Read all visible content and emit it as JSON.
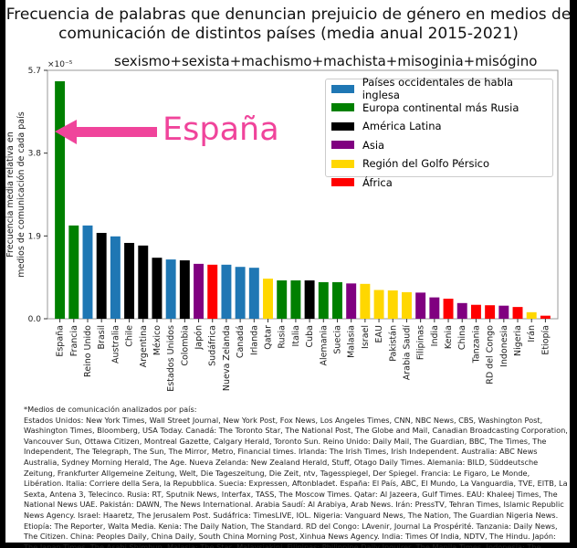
{
  "chart_data": {
    "type": "bar",
    "title": "Frecuencia de palabras que denuncian prejuicio de género en medios de comunicación de distintos países (media anual 2015-2021)",
    "subtitle": "sexismo+sexista+machismo+machista+misoginia+misógino",
    "ylabel": "Frecuencia media relativa en medios de comunicación de cada país",
    "y_multiplier": "×10⁻⁵",
    "ylim": [
      0,
      5.7
    ],
    "yticks": [
      "0.0",
      "1.9",
      "3.8",
      "5.7"
    ],
    "grid": false,
    "legend_position": "top-right",
    "annotation": "España",
    "categories": [
      "España",
      "Francia",
      "Reino Unido",
      "Brasil",
      "Australia",
      "Chile",
      "Argentina",
      "México",
      "Estados Unidos",
      "Colombia",
      "Japón",
      "Sudáfrica",
      "Nueva Zelanda",
      "Canadá",
      "Irlanda",
      "Qatar",
      "Rusia",
      "Italia",
      "Cuba",
      "Alemania",
      "Suecia",
      "Malasia",
      "Israel",
      "EAU",
      "Pakistán",
      "Arabia Saudí",
      "Filipinas",
      "India",
      "Kenia",
      "China",
      "Tanzania",
      "RD del Congo",
      "Indonesia",
      "Nigeria",
      "Irán",
      "Etiopía"
    ],
    "values": [
      5.45,
      2.14,
      2.14,
      1.97,
      1.89,
      1.74,
      1.68,
      1.4,
      1.36,
      1.34,
      1.26,
      1.24,
      1.24,
      1.19,
      1.17,
      0.92,
      0.88,
      0.88,
      0.88,
      0.84,
      0.84,
      0.81,
      0.8,
      0.66,
      0.65,
      0.61,
      0.6,
      0.49,
      0.46,
      0.36,
      0.32,
      0.31,
      0.3,
      0.27,
      0.15,
      0.07
    ],
    "groups": [
      1,
      1,
      0,
      2,
      0,
      2,
      2,
      2,
      0,
      2,
      3,
      5,
      0,
      0,
      0,
      4,
      1,
      1,
      2,
      1,
      1,
      3,
      4,
      4,
      4,
      4,
      3,
      3,
      5,
      3,
      5,
      5,
      3,
      5,
      4,
      5
    ],
    "legend": [
      {
        "name": "Países occidentales de habla inglesa",
        "color": "#1f77b4"
      },
      {
        "name": "Europa continental más Rusia",
        "color": "#008000"
      },
      {
        "name": "América Latina",
        "color": "#000000"
      },
      {
        "name": "Asia",
        "color": "#800080"
      },
      {
        "name": "Región del Golfo Pérsico",
        "color": "#ffd700"
      },
      {
        "name": "África",
        "color": "#ff0000"
      }
    ]
  },
  "footnote": {
    "heading": "*Medios de comunicación analizados por país:",
    "body": "Estados Unidos: New York Times, Wall Street Journal, New York Post, Fox News, Los Angeles Times, CNN, NBC News, CBS, Washington Post, Washington Times, Bloomberg, USA Today. Canadá: The Toronto Star, The National Post, The Globe and Mail, Canadian Broadcasting Corporation, Vancouver Sun, Ottawa Citizen, Montreal Gazette, Calgary Herald, Toronto Sun. Reino Unido: Daily Mail, The Guardian, BBC, The Times, The Independent, The Telegraph, The Sun, The Mirror, Metro, Financial times. Irlanda: The Irish Times, Irish Independent. Australia: ABC News Australia, Sydney Morning Herald, The Age. Nueva Zelanda: New Zealand Herald, Stuff, Otago Daily Times. Alemania: BILD, Süddeutsche Zeitung, Frankfurter Allgemeine Zeitung, Welt, Die Tageszeitung, Die Zeit, ntv, Tagesspiegel, Der Spiegel. Francia: Le Figaro, Le Monde, Libération. Italia: Corriere della Sera, la Repubblica. Suecia: Expressen, Aftonbladet. España: El País, ABC, El Mundo, La Vanguardia, TVE, EITB, La Sexta, Antena 3, Telecinco. Rusia: RT, Sputnik News, Interfax, TASS, The Moscow Times. Qatar: Al Jazeera, Gulf Times. EAU: Khaleej Times, The National News UAE. Pakistán: DAWN, The News International. Arabia Saudí: Al Arabiya, Arab News. Irán: PressTV, Tehran Times, Islamic Republic News Agency. Israel: Haaretz, The Jerusalem Post. Sudáfrica: TimesLIVE, IOL. Nigeria: Vanguard News, The Nation, The Guardian Nigeria News. Etiopía: The Reporter, Walta Media. Kenia: The Daily Nation, The Standard. RD del Congo: LAvenir, Journal La Prospérité. Tanzania: Daily News, The Citizen. China: Peoples Daily, China Daily, South China Morning Post, Xinhua News Agency. India: Times Of India, NDTV, The Hindu. Japón: The Japan Times, The Asahi Shimbun. Malasia: The Star, Malaysiakini. Filipinas: Philippine Daily Inquirer, The Manila Times. Indonesia: The Jakarta Post, Antara News. México: El Universal, Televisa. Cuba: Granma, Juventud Rebelde. Colombia: El Tiempo, Semana, Caracol TV, El Espectador. Argentina: Clarín, La Nación. Chile: EMOL, BioBioChile. Brasil: Jornal do Brasil, O Globo."
  }
}
